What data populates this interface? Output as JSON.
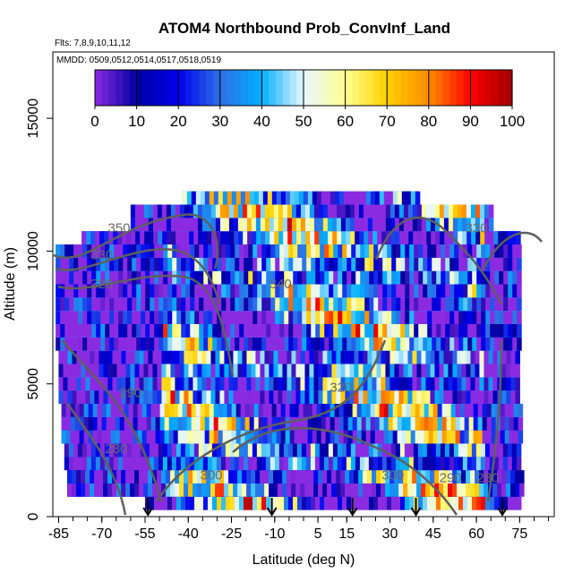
{
  "chart_data": {
    "type": "heatmap",
    "title": "ATOM4 Northbound Prob_ConvInf_Land",
    "flights_note": "Flts: 7,8,9,10,11,12",
    "dates_note": "MMDD: 0509,0512,0514,0517,0518,0519",
    "xlabel": "Latitude (deg N)",
    "ylabel": "Altitude (m)",
    "xlim": [
      -87,
      87
    ],
    "ylim": [
      0,
      17500
    ],
    "x_ticks": [
      -85,
      -70,
      -55,
      -40,
      -25,
      -10,
      5,
      15,
      30,
      45,
      60,
      75
    ],
    "x_tick_labels": [
      "-85",
      "-70",
      "-55",
      "-40",
      "-25",
      "-10",
      "5",
      "15",
      "30",
      "45",
      "60",
      "75"
    ],
    "y_ticks": [
      0,
      5000,
      10000,
      15000
    ],
    "y_tick_labels": [
      "0",
      "5000",
      "10000",
      "15000"
    ],
    "colorbar": {
      "min": 0,
      "max": 100,
      "ticks": [
        "0",
        "10",
        "20",
        "30",
        "40",
        "50",
        "60",
        "70",
        "80",
        "90",
        "100"
      ],
      "colors": [
        "#8A2BE2",
        "#0000A0",
        "#0000EE",
        "#2F6FE6",
        "#00B0FF",
        "#E8F6FF",
        "#FFFF90",
        "#FFD000",
        "#FF8C00",
        "#FF0000",
        "#A00000"
      ]
    },
    "layers": [
      {
        "alt": 500,
        "lat_min": -55,
        "lat_max": 75,
        "value": 12
      },
      {
        "alt": 1000,
        "lat_min": -82,
        "lat_max": 75,
        "value": 15
      },
      {
        "alt": 1500,
        "lat_min": -82,
        "lat_max": 75,
        "value": 18
      },
      {
        "alt": 2000,
        "lat_min": -83,
        "lat_max": 75,
        "value": 20
      },
      {
        "alt": 2500,
        "lat_min": -83,
        "lat_max": 75,
        "value": 22
      },
      {
        "alt": 3000,
        "lat_min": -84,
        "lat_max": 75,
        "value": 24
      },
      {
        "alt": 3500,
        "lat_min": -84,
        "lat_max": 75,
        "value": 26
      },
      {
        "alt": 4000,
        "lat_min": -84,
        "lat_max": 75,
        "value": 28
      },
      {
        "alt": 4500,
        "lat_min": -85,
        "lat_max": 75,
        "value": 30
      },
      {
        "alt": 5000,
        "lat_min": -85,
        "lat_max": 75,
        "value": 32
      },
      {
        "alt": 5500,
        "lat_min": -85,
        "lat_max": 75,
        "value": 34
      },
      {
        "alt": 6000,
        "lat_min": -85,
        "lat_max": 75,
        "value": 36
      },
      {
        "alt": 6500,
        "lat_min": -86,
        "lat_max": 75,
        "value": 38
      },
      {
        "alt": 7000,
        "lat_min": -86,
        "lat_max": 75,
        "value": 40
      },
      {
        "alt": 7500,
        "lat_min": -86,
        "lat_max": 75,
        "value": 40
      },
      {
        "alt": 8000,
        "lat_min": -86,
        "lat_max": 75,
        "value": 40
      },
      {
        "alt": 8500,
        "lat_min": -86,
        "lat_max": 75,
        "value": 38
      },
      {
        "alt": 9000,
        "lat_min": -86,
        "lat_max": 75,
        "value": 36
      },
      {
        "alt": 9500,
        "lat_min": -86,
        "lat_max": 75,
        "value": 34
      },
      {
        "alt": 10000,
        "lat_min": -86,
        "lat_max": 75,
        "value": 32
      },
      {
        "alt": 10500,
        "lat_min": -77,
        "lat_max": 75,
        "value": 30
      },
      {
        "alt": 11000,
        "lat_min": -60,
        "lat_max": 65,
        "value": 30
      },
      {
        "alt": 11500,
        "lat_min": -60,
        "lat_max": 65,
        "value": 32
      },
      {
        "alt": 12000,
        "lat_min": -42,
        "lat_max": 40,
        "value": 34
      }
    ],
    "contour_labels": [
      {
        "text": "350",
        "x": -64,
        "y": 10700
      },
      {
        "text": "330",
        "x": -70,
        "y": 9700
      },
      {
        "text": "320",
        "x": -70,
        "y": 8600
      },
      {
        "text": "340",
        "x": -8,
        "y": 8600
      },
      {
        "text": "320",
        "x": 13,
        "y": 4700
      },
      {
        "text": "290",
        "x": -60,
        "y": 4500
      },
      {
        "text": "280",
        "x": -65,
        "y": 2400
      },
      {
        "text": "300",
        "x": -32,
        "y": 1400
      },
      {
        "text": "300",
        "x": 31,
        "y": 1400
      },
      {
        "text": "290",
        "x": 51,
        "y": 1300
      },
      {
        "text": "280",
        "x": 64,
        "y": 1300
      },
      {
        "text": "330",
        "x": 60,
        "y": 10700
      }
    ],
    "flight_markers_lat": [
      -54,
      -11,
      17,
      39,
      69
    ]
  }
}
